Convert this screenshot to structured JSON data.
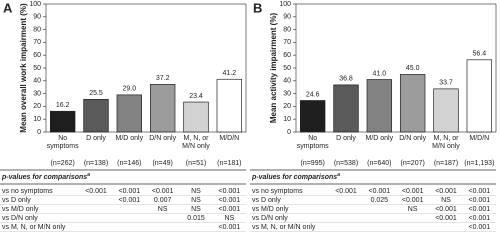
{
  "chart_data": [
    {
      "type": "bar",
      "panel_label": "A",
      "ylabel": "Mean overall work impairment (%)",
      "categories": [
        "No symptoms",
        "D only",
        "M/D only",
        "D/N only",
        "M, N, or M/N only",
        "M/D/N"
      ],
      "values": [
        16.2,
        25.5,
        29.0,
        37.2,
        23.4,
        41.2
      ],
      "value_labels": [
        "16.2",
        "25.5",
        "29.0",
        "37.2",
        "23.4",
        "41.2"
      ],
      "colors": [
        "#1e1e1e",
        "#5a5a5a",
        "#828282",
        "#9c9c9c",
        "#d2d2d2",
        "#ffffff"
      ],
      "n_labels": [
        "(n=262)",
        "(n=138)",
        "(n=146)",
        "(n=49)",
        "(n=51)",
        "(n=181)"
      ],
      "ylim": [
        0,
        100
      ],
      "yticks": [
        0,
        10,
        20,
        30,
        40,
        50,
        60,
        70,
        80,
        90,
        100
      ],
      "table": {
        "header": "p-values for comparisons",
        "footnote_mark": "a",
        "row_labels": [
          "vs no symptoms",
          "vs D only",
          "vs M/D only",
          "vs D/N only",
          "vs M, N, or M/N only"
        ],
        "rows": [
          [
            null,
            "<0.001",
            "<0.001",
            "<0.001",
            "NS",
            "<0.001"
          ],
          [
            null,
            null,
            "<0.001",
            "0.007",
            "NS",
            "<0.001"
          ],
          [
            null,
            null,
            null,
            "NS",
            "NS",
            "<0.001"
          ],
          [
            null,
            null,
            null,
            null,
            "0.015",
            "NS"
          ],
          [
            null,
            null,
            null,
            null,
            null,
            "<0.001"
          ]
        ]
      }
    },
    {
      "type": "bar",
      "panel_label": "B",
      "ylabel": "Mean activity impairment (%)",
      "categories": [
        "No symptoms",
        "D only",
        "M/D only",
        "D/N only",
        "M, N, or M/N only",
        "M/D/N"
      ],
      "values": [
        24.6,
        36.8,
        41.0,
        45.0,
        33.7,
        56.4
      ],
      "value_labels": [
        "24.6",
        "36.8",
        "41.0",
        "45.0",
        "33.7",
        "56.4"
      ],
      "colors": [
        "#1e1e1e",
        "#5a5a5a",
        "#828282",
        "#9c9c9c",
        "#d2d2d2",
        "#ffffff"
      ],
      "n_labels": [
        "(n=995)",
        "(n=538)",
        "(n=640)",
        "(n=207)",
        "(n=187)",
        "(n=1,193)"
      ],
      "ylim": [
        0,
        100
      ],
      "yticks": [
        0,
        10,
        20,
        30,
        40,
        50,
        60,
        70,
        80,
        90,
        100
      ],
      "table": {
        "header": "p-values for comparisons",
        "footnote_mark": "a",
        "row_labels": [
          "vs no symptoms",
          "vs D only",
          "vs M/D only",
          "vs D/N only",
          "vs M, N, or M/N only"
        ],
        "rows": [
          [
            null,
            "<0.001",
            "<0.001",
            "<0.001",
            "<0.001",
            "<0.001"
          ],
          [
            null,
            null,
            "0.025",
            "<0.001",
            "NS",
            "<0.001"
          ],
          [
            null,
            null,
            null,
            "NS",
            "<0.001",
            "<0.001"
          ],
          [
            null,
            null,
            null,
            null,
            "<0.001",
            "<0.001"
          ],
          [
            null,
            null,
            null,
            null,
            null,
            "<0.001"
          ]
        ]
      }
    }
  ]
}
